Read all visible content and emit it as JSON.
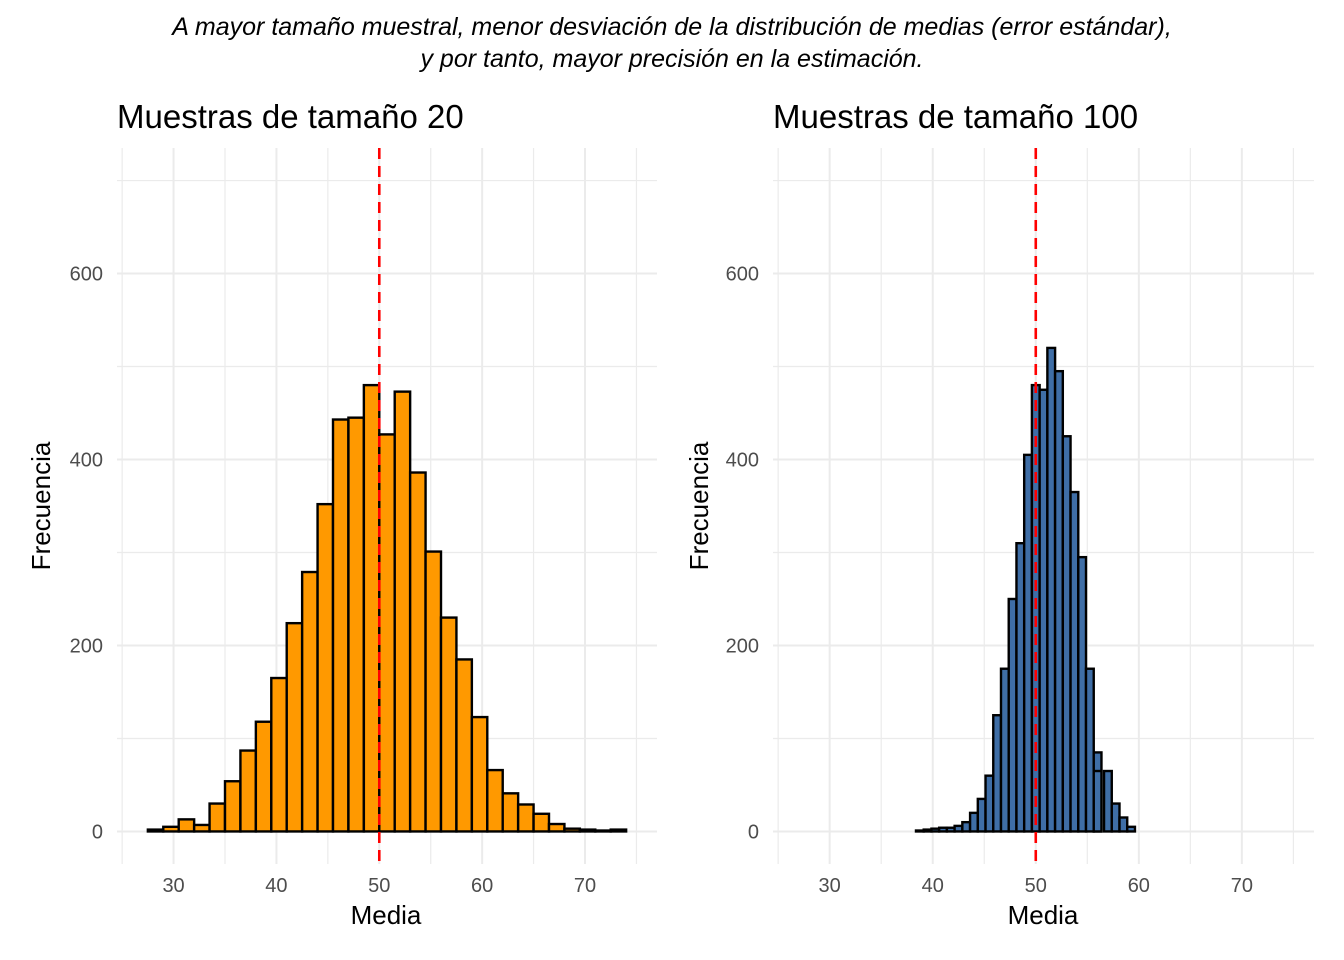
{
  "suptitle": {
    "line1": "A mayor tamaño muestral, menor desviación de la distribución de medias (error estándar),",
    "line2": "y por tanto, mayor precisión en la estimación."
  },
  "colors": {
    "grid": "#ebebeb",
    "bar_outline": "#000000",
    "reference_line": "#ff0000",
    "tick_text": "#4d4d4d"
  },
  "chart_data": [
    {
      "type": "bar",
      "subtype": "histogram",
      "title": "Muestras de tamaño 20",
      "xlabel": "Media",
      "ylabel": "Frecuencia",
      "xlim": [
        24.5,
        77
      ],
      "ylim": [
        -35,
        735
      ],
      "xticks": [
        30,
        40,
        50,
        60,
        70
      ],
      "yticks": [
        0,
        200,
        400,
        600
      ],
      "grid": true,
      "fill": "#ff9900",
      "reference_x": 50,
      "bin_width": 1.5,
      "bin_starts": [
        27.5,
        29,
        30.5,
        32,
        33.5,
        35,
        36.5,
        38,
        39.5,
        41,
        42.5,
        44,
        45.5,
        47,
        48.5,
        50,
        51.5,
        53,
        54.5,
        56,
        57.5,
        59,
        60.5,
        62,
        63.5,
        65,
        66.5,
        68,
        69.5,
        71,
        72.5
      ],
      "values": [
        2,
        5,
        13,
        7,
        30,
        54,
        87,
        118,
        165,
        224,
        279,
        352,
        443,
        445,
        480,
        427,
        473,
        386,
        301,
        230,
        185,
        123,
        66,
        41,
        29,
        19,
        8,
        3,
        2,
        1,
        2
      ]
    },
    {
      "type": "bar",
      "subtype": "histogram",
      "title": "Muestras de tamaño 100",
      "xlabel": "Media",
      "ylabel": "Frecuencia",
      "xlim": [
        24.5,
        77
      ],
      "ylim": [
        -35,
        735
      ],
      "xticks": [
        30,
        40,
        50,
        60,
        70
      ],
      "yticks": [
        0,
        200,
        400,
        600
      ],
      "grid": true,
      "fill": "#3f6ea6",
      "reference_x": 50,
      "bin_width": 0.75,
      "bin_starts": [
        38.375,
        39.125,
        39.875,
        40.625,
        41.375,
        42.125,
        42.875,
        43.625,
        44.375,
        45.125,
        45.875,
        46.625,
        47.375,
        48.125,
        48.875,
        49.625,
        50.375,
        51.125,
        51.875,
        52.625,
        53.375,
        54.125,
        54.875,
        55.625,
        56.625,
        57.375,
        58.125,
        58.875
      ],
      "values": [
        1,
        2,
        3,
        4,
        4,
        6,
        10,
        20,
        35,
        60,
        125,
        175,
        250,
        310,
        405,
        480,
        475,
        520,
        495,
        425,
        365,
        295,
        175,
        85,
        65,
        30,
        15,
        5
      ],
      "extra_bins": [
        {
          "start": 55.625,
          "end": 56.375,
          "value": 65
        }
      ]
    }
  ]
}
